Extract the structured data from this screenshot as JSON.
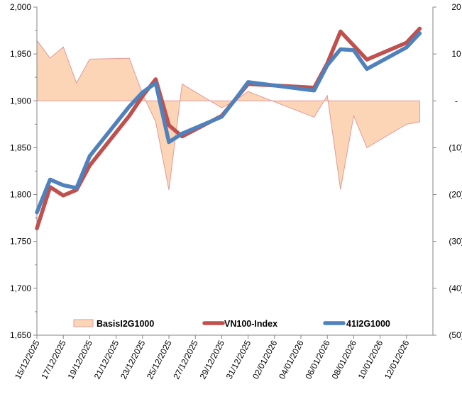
{
  "chart_data": {
    "type": "line",
    "x_axis": {
      "type": "date",
      "range": [
        "15/12/2025",
        "14/01/2026"
      ],
      "tick_labels": [
        "15/12/2025",
        "17/12/2025",
        "19/12/2025",
        "21/12/2025",
        "23/12/2025",
        "25/12/2025",
        "27/12/2025",
        "29/12/2025",
        "31/12/2025",
        "02/01/2026",
        "04/01/2026",
        "06/01/2026",
        "08/01/2026",
        "10/01/2026",
        "12/01/2026"
      ]
    },
    "y_left": {
      "ylim": [
        1650,
        2000
      ],
      "tick_labels": [
        "1,650",
        "1,700",
        "1,750",
        "1,800",
        "1,850",
        "1,900",
        "1,950",
        "2,000"
      ]
    },
    "y_right": {
      "ylim": [
        -50,
        20
      ],
      "tick_labels": [
        "(50)",
        "(40)",
        "(30)",
        "(20)",
        "(10)",
        "-",
        "10",
        "20"
      ]
    },
    "grid": false,
    "legend_position": "bottom-inside",
    "x": [
      "15/12/2025",
      "16/12/2025",
      "17/12/2025",
      "18/12/2025",
      "19/12/2025",
      "22/12/2025",
      "23/12/2025",
      "24/12/2025",
      "25/12/2025",
      "26/12/2025",
      "29/12/2025",
      "30/12/2025",
      "31/12/2025",
      "05/01/2026",
      "06/01/2026",
      "07/01/2026",
      "08/01/2026",
      "09/01/2026",
      "12/01/2026",
      "13/01/2026"
    ],
    "series": [
      {
        "name": "BasisI2G1000",
        "type": "area",
        "axis": "right",
        "color": "#FBD5B5",
        "stroke": "#E39A9A",
        "values": [
          12.9,
          9.1,
          11.5,
          3.8,
          8.9,
          9.1,
          1.5,
          -4.5,
          -19.0,
          3.6,
          -1.5,
          0.0,
          2.0,
          -3.5,
          1.1,
          -18.9,
          -3.2,
          -10.0,
          -5.0,
          -4.5
        ]
      },
      {
        "name": "VN100-Index",
        "type": "line",
        "axis": "left",
        "color": "#C0504D",
        "values": [
          1764,
          1808,
          1799,
          1805,
          1831,
          1884,
          1905,
          1923,
          1874,
          1862,
          1884,
          1901,
          1918,
          1914,
          1940,
          1974,
          1959,
          1944,
          1962,
          1977
        ]
      },
      {
        "name": "41I2G1000",
        "type": "line",
        "axis": "left",
        "color": "#4F81BD",
        "values": [
          1781,
          1816,
          1810,
          1807,
          1841,
          1894,
          1909,
          1919,
          1856,
          1865,
          1883,
          1901,
          1920,
          1911,
          1938,
          1955,
          1954,
          1934,
          1957,
          1972
        ]
      }
    ]
  }
}
